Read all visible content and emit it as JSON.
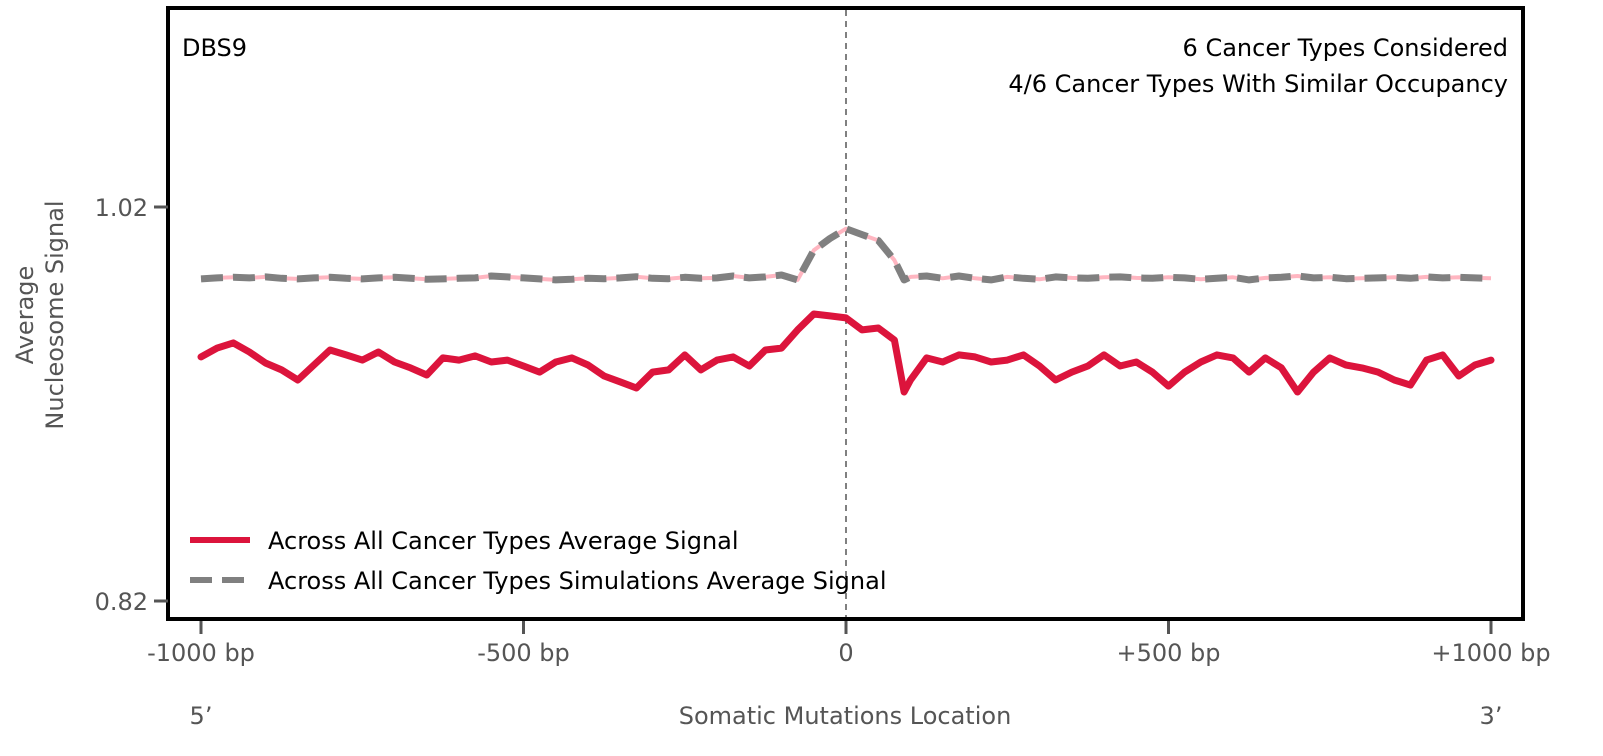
{
  "chart_data": {
    "type": "line",
    "panel_label": "DBS9",
    "annotations": [
      "6 Cancer Types Considered",
      "4/6 Cancer Types With Similar Occupancy"
    ],
    "xlabel": "Somatic Mutations Location",
    "ylabel_lines": [
      "Average",
      "Nucleosome Signal"
    ],
    "x_end_labels": {
      "left": "5’",
      "right": "3’"
    },
    "xlim": [
      -1000,
      1000
    ],
    "ylim": [
      0.82,
      1.02
    ],
    "x_ticks": [
      {
        "value": -1000,
        "label": "-1000 bp"
      },
      {
        "value": -500,
        "label": "-500 bp"
      },
      {
        "value": 0,
        "label": "0"
      },
      {
        "value": 500,
        "label": "+500 bp"
      },
      {
        "value": 1000,
        "label": "+1000 bp"
      }
    ],
    "y_ticks": [
      {
        "value": 1.02,
        "label": "1.02"
      },
      {
        "value": 0.82,
        "label": "0.82"
      }
    ],
    "grid": false,
    "center_line": {
      "x": 0,
      "style": "dashed",
      "color": "#808080"
    },
    "legend": {
      "position": "bottom-left",
      "entries": [
        {
          "label": "Across All Cancer Types Average Signal",
          "style": "solid",
          "color": "#dc143c"
        },
        {
          "label": "Across All Cancer Types Simulations Average Signal",
          "style": "dashed",
          "color": "#808080"
        }
      ]
    },
    "x": [
      -1000,
      -975,
      -950,
      -925,
      -900,
      -875,
      -850,
      -825,
      -800,
      -775,
      -750,
      -725,
      -700,
      -675,
      -650,
      -625,
      -600,
      -575,
      -550,
      -525,
      -500,
      -475,
      -450,
      -425,
      -400,
      -375,
      -350,
      -325,
      -300,
      -275,
      -250,
      -225,
      -200,
      -175,
      -150,
      -125,
      -100,
      -75,
      -50,
      -25,
      0,
      25,
      50,
      75,
      90,
      100,
      125,
      150,
      175,
      200,
      225,
      250,
      275,
      300,
      325,
      350,
      375,
      400,
      425,
      450,
      475,
      500,
      525,
      550,
      575,
      600,
      625,
      650,
      675,
      700,
      725,
      750,
      775,
      800,
      825,
      850,
      875,
      900,
      925,
      950,
      975,
      1000
    ],
    "series": [
      {
        "name": "Across All Cancer Types Average Signal",
        "color": "#dc143c",
        "style": "solid",
        "values": [
          0.9439,
          0.9484,
          0.951,
          0.9464,
          0.9408,
          0.9373,
          0.9322,
          0.9398,
          0.9474,
          0.9449,
          0.9423,
          0.9464,
          0.9413,
          0.9383,
          0.9347,
          0.9434,
          0.9423,
          0.9444,
          0.9413,
          0.9423,
          0.9393,
          0.9362,
          0.9413,
          0.9434,
          0.9398,
          0.9342,
          0.9312,
          0.9281,
          0.9362,
          0.9373,
          0.9449,
          0.9373,
          0.9423,
          0.9439,
          0.9393,
          0.9474,
          0.9484,
          0.9576,
          0.9657,
          0.9647,
          0.9637,
          0.9576,
          0.9586,
          0.9525,
          0.9261,
          0.9322,
          0.9434,
          0.9413,
          0.9449,
          0.9439,
          0.9413,
          0.9423,
          0.9449,
          0.9393,
          0.9322,
          0.9362,
          0.9393,
          0.9449,
          0.9393,
          0.9413,
          0.9362,
          0.9291,
          0.9362,
          0.9413,
          0.9449,
          0.9434,
          0.9362,
          0.9434,
          0.9383,
          0.9261,
          0.9362,
          0.9434,
          0.9398,
          0.9383,
          0.9362,
          0.9322,
          0.9296,
          0.9423,
          0.9449,
          0.9342,
          0.9398,
          0.9423
        ]
      },
      {
        "name": "Across All Cancer Types Simulations Average Signal",
        "color": "#808080",
        "underlay_color": "#ffb6c1",
        "style": "dashed",
        "values": [
          0.9835,
          0.984,
          0.9843,
          0.984,
          0.9845,
          0.9838,
          0.9835,
          0.984,
          0.9843,
          0.9838,
          0.9835,
          0.984,
          0.9843,
          0.9838,
          0.9833,
          0.9835,
          0.9838,
          0.984,
          0.985,
          0.9845,
          0.984,
          0.9835,
          0.983,
          0.9833,
          0.9838,
          0.9836,
          0.984,
          0.9846,
          0.9838,
          0.9836,
          0.9843,
          0.9838,
          0.984,
          0.985,
          0.984,
          0.9845,
          0.9855,
          0.983,
          0.998,
          1.004,
          1.009,
          1.006,
          1.003,
          0.993,
          0.983,
          0.9845,
          0.985,
          0.9838,
          0.985,
          0.9838,
          0.983,
          0.9845,
          0.9838,
          0.9833,
          0.9845,
          0.984,
          0.9838,
          0.9843,
          0.9845,
          0.984,
          0.9838,
          0.9843,
          0.984,
          0.9833,
          0.9838,
          0.9843,
          0.983,
          0.984,
          0.9843,
          0.985,
          0.984,
          0.9843,
          0.9836,
          0.9838,
          0.984,
          0.9843,
          0.9838,
          0.9845,
          0.984,
          0.9843,
          0.984,
          0.9838
        ]
      }
    ]
  }
}
